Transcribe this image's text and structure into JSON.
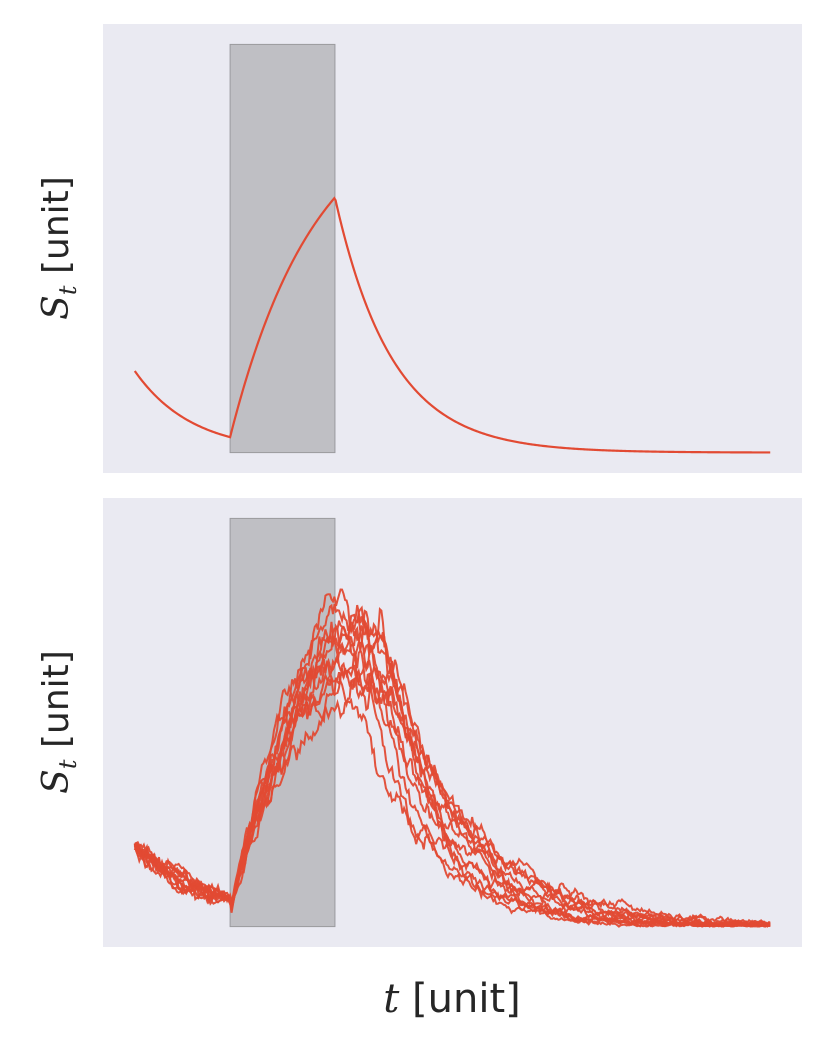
{
  "colors": {
    "background": "#eaeaf2",
    "line": "#e24a33",
    "shade_fill": "#b0b0b4",
    "shade_stroke": "#9a9a9e",
    "text": "#262626"
  },
  "figure": {
    "xlabel_symbol": "t",
    "xlabel_unit": "[unit]"
  },
  "chart_data": [
    {
      "type": "line",
      "panel": "top",
      "title": "",
      "ylabel_symbol": "S",
      "ylabel_subscript": "t",
      "ylabel_unit": "[unit]",
      "xlim": [
        -0.5,
        10.5
      ],
      "ylim": [
        -0.05,
        1.05
      ],
      "grid": false,
      "shaded_interval": {
        "x": [
          1.5,
          3.15
        ],
        "y": [
          0.0,
          1.0
        ]
      },
      "series": [
        {
          "curve": "deterministic",
          "x0": 0.0,
          "y0": 0.2,
          "t_on": 1.5,
          "t_off": 3.15,
          "decay_tau_before": 0.9,
          "rise_tau": 1.35,
          "peak": 0.625,
          "decay_tau_after": 0.9,
          "baseline": 0.0,
          "x_end": 10.0
        }
      ]
    },
    {
      "type": "line",
      "panel": "bottom",
      "title": "",
      "ylabel_symbol": "S",
      "ylabel_subscript": "t",
      "ylabel_unit": "[unit]",
      "xlim": [
        -0.5,
        10.5
      ],
      "ylim": [
        -0.05,
        1.05
      ],
      "grid": false,
      "shaded_interval": {
        "x": [
          1.5,
          3.15
        ],
        "y": [
          0.0,
          1.0
        ]
      },
      "stochastic_paths": {
        "count": 12,
        "x0": 0.0,
        "y0": 0.2,
        "t_on": 1.5,
        "t_off": 3.15,
        "peak_values": [
          0.78,
          0.72,
          0.7,
          0.62,
          0.55,
          0.66,
          0.74,
          0.59,
          0.68,
          0.8,
          0.64,
          0.71
        ],
        "x_end": 10.0
      }
    }
  ]
}
